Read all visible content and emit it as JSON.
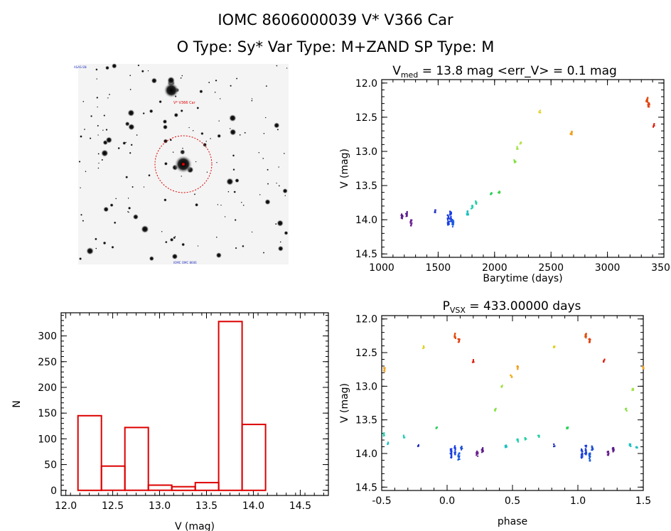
{
  "header": {
    "line1": "IOMC 8606000039    V* V366 Car",
    "line2": "O Type: Sy*  Var Type: M+ZAND  SP Type: M"
  },
  "image_panel": {
    "star_label": "V* V366 Car",
    "top_left_label": "ASAS-SN",
    "bottom_label": "IOMC OMC 8606"
  },
  "colors": {
    "histogram": "#dd0000",
    "axes": "#000000",
    "circle": "#dd0000"
  },
  "chart_data": [
    {
      "id": "lightcurve",
      "type": "scatter",
      "title": "V",
      "title_sub": "med",
      "title_rest": " = 13.8 mag <err_V> = 0.1 mag",
      "xlabel": "Barytime (days)",
      "ylabel": "V (mag)",
      "xlim": [
        1000,
        3500
      ],
      "ylim": [
        14.55,
        11.95
      ],
      "xticks": [
        1000,
        1500,
        2000,
        2500,
        3000,
        3500
      ],
      "yticks": [
        12.0,
        12.5,
        13.0,
        13.5,
        14.0,
        14.5
      ],
      "groups": [
        {
          "x": 1180,
          "y": 13.95,
          "s": 0.08,
          "color": "#5a1a8a"
        },
        {
          "x": 1220,
          "y": 13.92,
          "s": 0.08,
          "color": "#5a1a8a"
        },
        {
          "x": 1260,
          "y": 14.05,
          "s": 0.1,
          "color": "#6a2090"
        },
        {
          "x": 1470,
          "y": 13.88,
          "s": 0.05,
          "color": "#2030c0"
        },
        {
          "x": 1590,
          "y": 14.0,
          "s": 0.16,
          "color": "#1a3de0"
        },
        {
          "x": 1610,
          "y": 13.95,
          "s": 0.16,
          "color": "#1a3de0"
        },
        {
          "x": 1630,
          "y": 14.05,
          "s": 0.12,
          "color": "#1a5ae0"
        },
        {
          "x": 1760,
          "y": 13.9,
          "s": 0.06,
          "color": "#20c0c0"
        },
        {
          "x": 1800,
          "y": 13.82,
          "s": 0.06,
          "color": "#20d0b0"
        },
        {
          "x": 1840,
          "y": 13.75,
          "s": 0.05,
          "color": "#20d0a0"
        },
        {
          "x": 1970,
          "y": 13.62,
          "s": 0.03,
          "color": "#30d060"
        },
        {
          "x": 2040,
          "y": 13.6,
          "s": 0.03,
          "color": "#40d050"
        },
        {
          "x": 2180,
          "y": 13.15,
          "s": 0.05,
          "color": "#80e040"
        },
        {
          "x": 2200,
          "y": 12.95,
          "s": 0.04,
          "color": "#a0e040"
        },
        {
          "x": 2230,
          "y": 12.88,
          "s": 0.03,
          "color": "#b0e040"
        },
        {
          "x": 2400,
          "y": 12.42,
          "s": 0.04,
          "color": "#e0d020"
        },
        {
          "x": 2680,
          "y": 12.72,
          "s": 0.07,
          "color": "#f0a020"
        },
        {
          "x": 3350,
          "y": 12.25,
          "s": 0.08,
          "color": "#e05010"
        },
        {
          "x": 3365,
          "y": 12.32,
          "s": 0.07,
          "color": "#e04010"
        },
        {
          "x": 3410,
          "y": 12.62,
          "s": 0.05,
          "color": "#e02010"
        }
      ]
    },
    {
      "id": "histogram",
      "type": "bar",
      "xlabel": "V (mag)",
      "ylabel": "N",
      "xlim": [
        11.95,
        14.8
      ],
      "ylim": [
        -10,
        345
      ],
      "xticks": [
        12.0,
        12.5,
        13.0,
        13.5,
        14.0,
        14.5
      ],
      "xtick_labels": [
        "12.0",
        "12.5",
        "13.0",
        "13.5",
        "14.0",
        "14.5"
      ],
      "yticks": [
        0,
        50,
        100,
        150,
        200,
        250,
        300
      ],
      "bin_edges": [
        12.13,
        12.38,
        12.63,
        12.88,
        13.13,
        13.38,
        13.63,
        13.88,
        14.13,
        14.38
      ],
      "values": [
        145,
        47,
        122,
        10,
        7,
        15,
        328,
        128,
        0
      ]
    },
    {
      "id": "phased",
      "type": "scatter",
      "title": "P",
      "title_sub": "VSX",
      "title_rest": " = 433.00000 days",
      "xlabel": "phase",
      "ylabel": "V (mag)",
      "xlim": [
        -0.5,
        1.5
      ],
      "ylim": [
        14.55,
        11.95
      ],
      "xticks": [
        -0.5,
        0.0,
        0.5,
        1.0,
        1.5
      ],
      "xtick_labels": [
        "-0.5",
        "0.0",
        "0.5",
        "1.0",
        "1.5"
      ],
      "yticks": [
        12.0,
        12.5,
        13.0,
        13.5,
        14.0,
        14.5
      ],
      "groups": [
        {
          "x": -0.18,
          "y": 12.42,
          "s": 0.04,
          "color": "#e0d020"
        },
        {
          "x": 0.06,
          "y": 12.25,
          "s": 0.08,
          "color": "#e05010"
        },
        {
          "x": 0.09,
          "y": 12.32,
          "s": 0.06,
          "color": "#e04010"
        },
        {
          "x": 0.2,
          "y": 12.62,
          "s": 0.05,
          "color": "#e02010"
        },
        {
          "x": 0.54,
          "y": 12.72,
          "s": 0.07,
          "color": "#f0a020"
        },
        {
          "x": 0.49,
          "y": 12.85,
          "s": 0.04,
          "color": "#f0b020"
        },
        {
          "x": -0.48,
          "y": 12.75,
          "s": 0.07,
          "color": "#f0a020"
        },
        {
          "x": 0.37,
          "y": 13.35,
          "s": 0.04,
          "color": "#80e040"
        },
        {
          "x": 0.42,
          "y": 13.0,
          "s": 0.04,
          "color": "#a0e040"
        },
        {
          "x": -0.08,
          "y": 13.62,
          "s": 0.03,
          "color": "#30d060"
        },
        {
          "x": -0.48,
          "y": 13.72,
          "s": 0.05,
          "color": "#20d0b0"
        },
        {
          "x": -0.45,
          "y": 13.85,
          "s": 0.04,
          "color": "#20c0c0"
        },
        {
          "x": -0.33,
          "y": 13.75,
          "s": 0.04,
          "color": "#20d0b0"
        },
        {
          "x": -0.22,
          "y": 13.88,
          "s": 0.04,
          "color": "#2030c0"
        },
        {
          "x": 0.03,
          "y": 14.0,
          "s": 0.14,
          "color": "#1a3de0"
        },
        {
          "x": 0.06,
          "y": 13.95,
          "s": 0.14,
          "color": "#1a3de0"
        },
        {
          "x": 0.09,
          "y": 14.05,
          "s": 0.12,
          "color": "#1a5ae0"
        },
        {
          "x": 0.11,
          "y": 13.92,
          "s": 0.06,
          "color": "#2050d0"
        },
        {
          "x": 0.23,
          "y": 14.0,
          "s": 0.08,
          "color": "#6a2090"
        },
        {
          "x": 0.27,
          "y": 13.95,
          "s": 0.08,
          "color": "#5a1a8a"
        },
        {
          "x": 0.45,
          "y": 13.9,
          "s": 0.05,
          "color": "#20c0c0"
        },
        {
          "x": 0.54,
          "y": 13.8,
          "s": 0.06,
          "color": "#20d0b0"
        },
        {
          "x": 0.6,
          "y": 13.78,
          "s": 0.04,
          "color": "#20d0a0"
        },
        {
          "x": 0.7,
          "y": 13.75,
          "s": 0.04,
          "color": "#20d0a0"
        },
        {
          "x": 0.82,
          "y": 13.88,
          "s": 0.04,
          "color": "#2030c0"
        },
        {
          "x": 0.92,
          "y": 13.62,
          "s": 0.03,
          "color": "#30d060"
        },
        {
          "x": 0.82,
          "y": 12.42,
          "s": 0.04,
          "color": "#e0d020"
        },
        {
          "x": 1.06,
          "y": 12.25,
          "s": 0.08,
          "color": "#e05010"
        },
        {
          "x": 1.09,
          "y": 12.32,
          "s": 0.06,
          "color": "#e04010"
        },
        {
          "x": 1.2,
          "y": 12.62,
          "s": 0.05,
          "color": "#e02010"
        },
        {
          "x": 1.5,
          "y": 12.72,
          "s": 0.05,
          "color": "#f0a020"
        },
        {
          "x": 1.37,
          "y": 13.35,
          "s": 0.04,
          "color": "#80e040"
        },
        {
          "x": 1.42,
          "y": 13.05,
          "s": 0.04,
          "color": "#a0e040"
        },
        {
          "x": 1.03,
          "y": 14.0,
          "s": 0.14,
          "color": "#1a3de0"
        },
        {
          "x": 1.06,
          "y": 13.95,
          "s": 0.14,
          "color": "#1a3de0"
        },
        {
          "x": 1.09,
          "y": 14.05,
          "s": 0.12,
          "color": "#1a5ae0"
        },
        {
          "x": 1.11,
          "y": 13.92,
          "s": 0.06,
          "color": "#2050d0"
        },
        {
          "x": 1.23,
          "y": 14.0,
          "s": 0.08,
          "color": "#6a2090"
        },
        {
          "x": 1.27,
          "y": 13.95,
          "s": 0.08,
          "color": "#5a1a8a"
        },
        {
          "x": 1.4,
          "y": 13.88,
          "s": 0.05,
          "color": "#20c0c0"
        },
        {
          "x": 1.45,
          "y": 13.9,
          "s": 0.04,
          "color": "#20c0c0"
        }
      ]
    }
  ]
}
